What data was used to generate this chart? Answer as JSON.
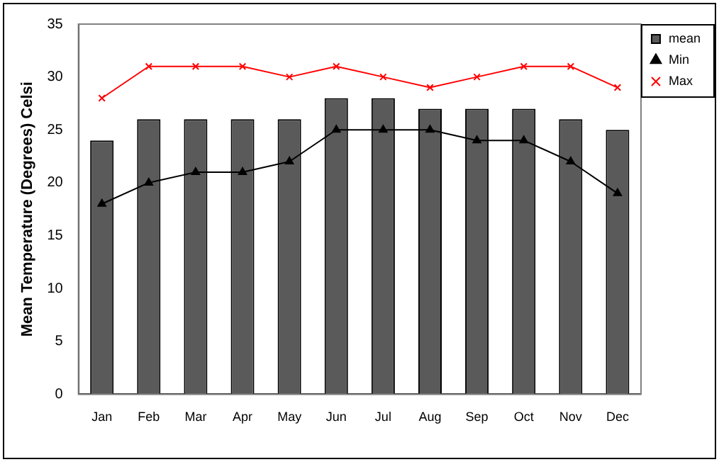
{
  "chart_data": {
    "type": "bar",
    "ylabel": "Mean Temperature (Degrees) Celsi",
    "categories": [
      "Jan",
      "Feb",
      "Mar",
      "Apr",
      "May",
      "Jun",
      "Jul",
      "Aug",
      "Sep",
      "Oct",
      "Nov",
      "Dec"
    ],
    "series": [
      {
        "name": "mean",
        "color": "#5a5a5a",
        "values": [
          24,
          26,
          26,
          26,
          26,
          28,
          28,
          27,
          27,
          27,
          26,
          25
        ]
      },
      {
        "name": "Min",
        "type": "line",
        "color": "#000000",
        "marker": "triangle",
        "values": [
          18,
          20,
          21,
          21,
          22,
          25,
          25,
          25,
          24,
          24,
          22,
          19
        ]
      },
      {
        "name": "Max",
        "type": "line",
        "color": "#ff0000",
        "marker": "cross",
        "values": [
          28,
          31,
          31,
          31,
          30,
          31,
          30,
          29,
          30,
          31,
          31,
          29
        ]
      }
    ],
    "ylim": [
      0,
      35
    ],
    "yticks": [
      0,
      5,
      10,
      15,
      20,
      25,
      30,
      35
    ],
    "grid": false,
    "legend": "top right"
  }
}
